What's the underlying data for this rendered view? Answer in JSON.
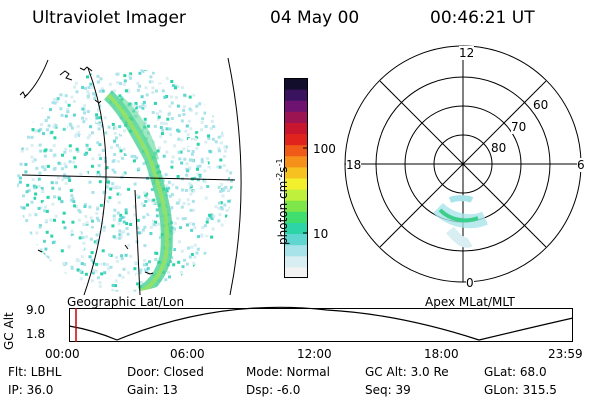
{
  "header": {
    "title": "Ultraviolet Imager",
    "date": "04 May 00",
    "time": "00:46:21 UT"
  },
  "geo_panel": {
    "caption": "Geographic Lat/Lon"
  },
  "colorbar": {
    "unit_label_main": "photon cm",
    "unit_sup_1": "-2",
    "unit_mid": "s",
    "unit_sup_2": "-1",
    "tick_labels": [
      "100",
      "10"
    ],
    "scale": "log",
    "colors": [
      "#f2f2f2",
      "#d8eef2",
      "#a9e3ea",
      "#5fd6d0",
      "#2cd4a8",
      "#40de6e",
      "#7ee64a",
      "#bff03b",
      "#f2f02c",
      "#f7c21f",
      "#f5901a",
      "#ef5a18",
      "#e0231c",
      "#c7162e",
      "#9c1452",
      "#6e1470",
      "#3a135f",
      "#120d2a"
    ]
  },
  "polar_panel": {
    "caption": "Apex MLat/MLT",
    "mlt_labels": {
      "top": "12",
      "bottom": "0",
      "left": "18",
      "right": "6"
    },
    "mlat_labels": [
      "60",
      "70",
      "80"
    ]
  },
  "altitude_plot": {
    "ylabel": "GC Alt",
    "y_ticks": [
      "9.0",
      "1.8"
    ],
    "x_ticks": [
      "00:00",
      "06:00",
      "12:00",
      "18:00",
      "23:59"
    ],
    "cursor_color": "#cc0000"
  },
  "info": {
    "flt": "Flt: LBHL",
    "ip": "IP: 36.0",
    "door": "Door: Closed",
    "gain": "Gain: 13",
    "mode": "Mode: Normal",
    "dsp": "Dsp:   -6.0",
    "gc_alt": "GC Alt: 3.0 Re",
    "seq": "Seq: 39",
    "glat": "GLat:  68.0",
    "glon": "GLon: 315.5"
  }
}
